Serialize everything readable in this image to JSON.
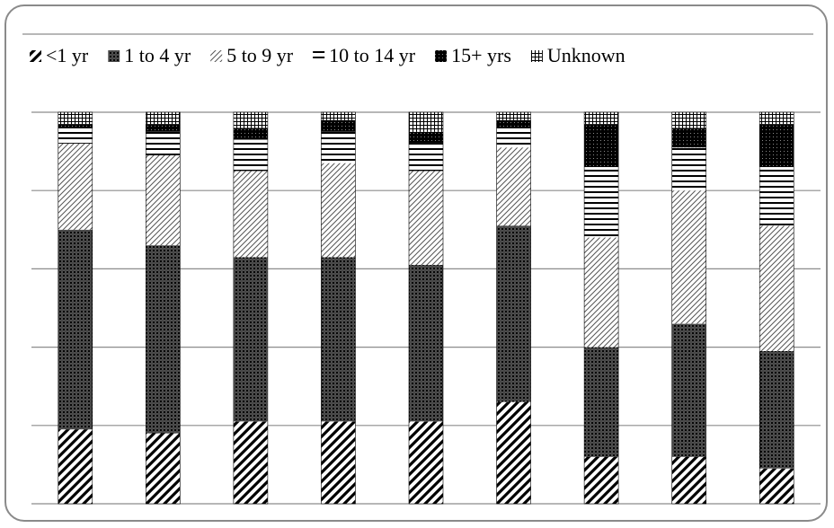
{
  "chart_data": {
    "type": "bar",
    "stacked": true,
    "normalized": true,
    "title": "",
    "xlabel": "",
    "ylabel": "",
    "ylim": [
      0,
      100
    ],
    "grid": true,
    "legend_position": "top",
    "categories": [
      "",
      "",
      "",
      "",
      "",
      "",
      "",
      "",
      ""
    ],
    "series": [
      {
        "name": "<1 yr",
        "pattern": "diagonal-stripes",
        "values": [
          19,
          18,
          21,
          21,
          21,
          26,
          12,
          12,
          9
        ]
      },
      {
        "name": "1 to 4 yr",
        "pattern": "dense-crosshatch",
        "values": [
          51,
          48,
          42,
          42,
          40,
          45,
          28,
          34,
          30
        ]
      },
      {
        "name": "5  to 9 yr",
        "pattern": "light-diagonal",
        "values": [
          22,
          23,
          22,
          24,
          24,
          20,
          28,
          34,
          32
        ]
      },
      {
        "name": "10 to 14 yr",
        "pattern": "horizontal-lines",
        "values": [
          4,
          6,
          8,
          8,
          7,
          5,
          18,
          11,
          15
        ]
      },
      {
        "name": "15+ yrs",
        "pattern": "dark-dotted",
        "values": [
          1,
          2,
          3,
          3,
          3,
          2,
          11,
          5,
          11
        ]
      },
      {
        "name": "Unknown",
        "pattern": "grid",
        "values": [
          3,
          3,
          4,
          2,
          5,
          2,
          3,
          4,
          3
        ]
      }
    ],
    "colors": {
      "ink": "#000000",
      "gridline": "#8c8c8c",
      "frame": "#8a8a8a",
      "legend_rule": "#8c8c8c"
    }
  }
}
